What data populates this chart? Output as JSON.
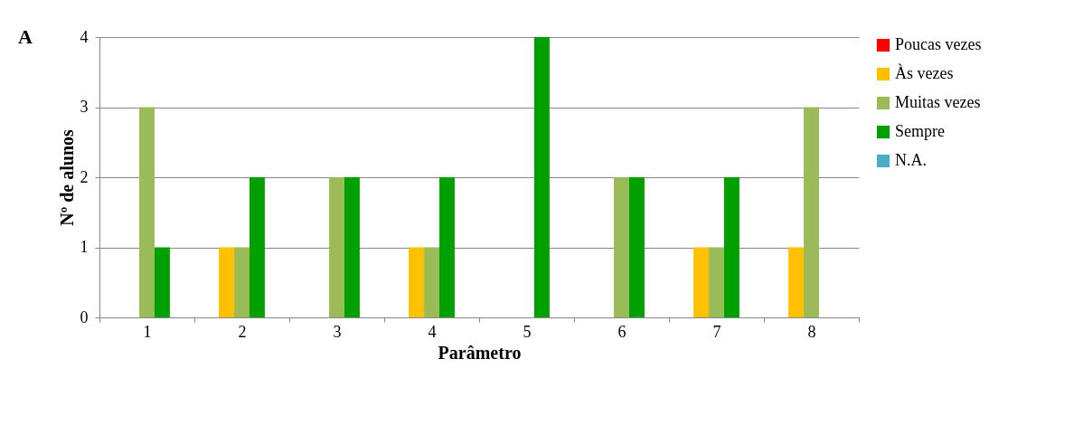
{
  "chart_data": {
    "type": "bar",
    "xlabel": "Parâmetro",
    "ylabel": "Nº de alunos",
    "annotations": [
      "A"
    ],
    "categories": [
      "1",
      "2",
      "3",
      "4",
      "5",
      "6",
      "7",
      "8"
    ],
    "series": [
      {
        "name": "Poucas vezes",
        "color": "#ff0000",
        "values": [
          0,
          0,
          0,
          0,
          0,
          0,
          0,
          0
        ]
      },
      {
        "name": "Às vezes",
        "color": "#ffc000",
        "values": [
          0,
          1,
          0,
          1,
          0,
          0,
          1,
          1
        ]
      },
      {
        "name": "Muitas vezes",
        "color": "#9bbb59",
        "values": [
          3,
          1,
          2,
          1,
          0,
          2,
          1,
          3
        ]
      },
      {
        "name": "Sempre",
        "color": "#00a000",
        "values": [
          1,
          2,
          2,
          2,
          4,
          2,
          2,
          0
        ]
      },
      {
        "name": "N.A.",
        "color": "#4bacc6",
        "values": [
          0,
          0,
          0,
          0,
          0,
          0,
          0,
          0
        ]
      }
    ],
    "ylim": [
      0,
      4
    ],
    "yticks": [
      0,
      1,
      2,
      3,
      4
    ],
    "grid": "y",
    "legend": "right"
  }
}
